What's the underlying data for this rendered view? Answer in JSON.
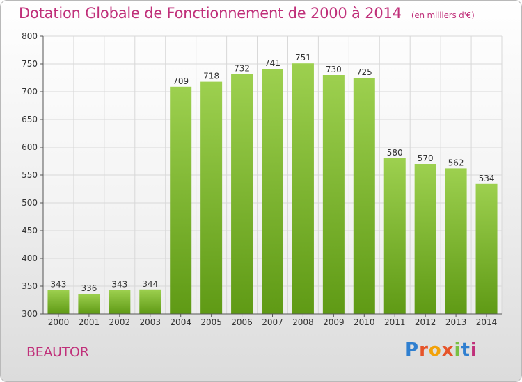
{
  "header": {
    "title": "Dotation Globale de Fonctionnement de 2000 à 2014",
    "unit": "(en milliers d'€)"
  },
  "footer": {
    "town": "BEAUTOR",
    "logo_text": "Proxiti",
    "logo_colors": [
      "#2f7fd0",
      "#e6542a",
      "#f2a20a",
      "#e6542a",
      "#79c043",
      "#2f7fd0",
      "#c0307a"
    ]
  },
  "colors": {
    "bar_top": "#9dd04f",
    "bar_bottom": "#5f9a15",
    "title": "#c0307a",
    "grid": "#d8d8d8"
  },
  "chart_data": {
    "type": "bar",
    "title": "Dotation Globale de Fonctionnement de 2000 à 2014",
    "categories": [
      "2000",
      "2001",
      "2002",
      "2003",
      "2004",
      "2005",
      "2006",
      "2007",
      "2008",
      "2009",
      "2010",
      "2011",
      "2012",
      "2013",
      "2014"
    ],
    "values": [
      343,
      336,
      343,
      344,
      709,
      718,
      732,
      741,
      751,
      730,
      725,
      580,
      570,
      562,
      534
    ],
    "ylim": [
      300,
      800
    ],
    "yticks": [
      300,
      350,
      400,
      450,
      500,
      550,
      600,
      650,
      700,
      750,
      800
    ],
    "grid": true,
    "data_labels": true
  }
}
